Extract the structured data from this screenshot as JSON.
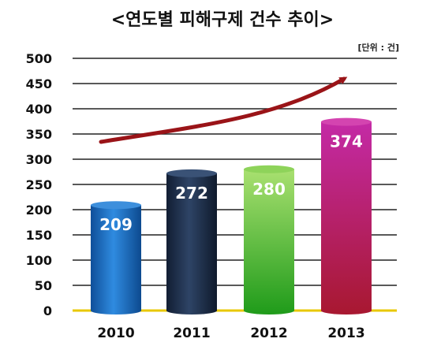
{
  "chart_data": {
    "type": "bar",
    "title": "<연도별 피해구제 건수 추이>",
    "unit_label": "[단위 : 건]",
    "categories": [
      "2010",
      "2011",
      "2012",
      "2013"
    ],
    "values": [
      209,
      272,
      280,
      374
    ],
    "data_labels": [
      "209",
      "272",
      "280",
      "374"
    ],
    "yticks": [
      "0",
      "50",
      "100",
      "150",
      "200",
      "250",
      "300",
      "350",
      "400",
      "450",
      "500"
    ],
    "ylim": [
      0,
      500
    ],
    "grid": true,
    "trend_arrow": true,
    "colors": {
      "bar_2010": "#1a6fc4",
      "bar_2011": "#1e3050",
      "bar_2012": "#3bb52a",
      "bar_2013": "#b0227a",
      "arrow": "#9a1418",
      "baseline": "#e8c800",
      "grid": "#222222"
    }
  }
}
